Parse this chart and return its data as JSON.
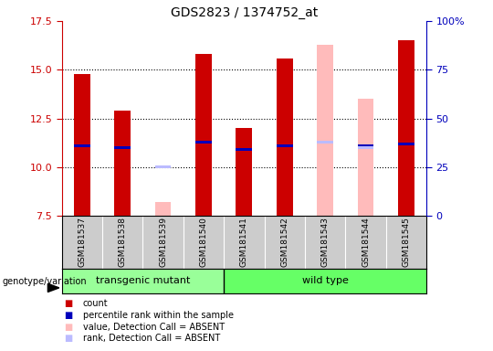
{
  "title": "GDS2823 / 1374752_at",
  "samples": [
    "GSM181537",
    "GSM181538",
    "GSM181539",
    "GSM181540",
    "GSM181541",
    "GSM181542",
    "GSM181543",
    "GSM181544",
    "GSM181545"
  ],
  "ylim": [
    7.5,
    17.5
  ],
  "yticks": [
    7.5,
    10.0,
    12.5,
    15.0,
    17.5
  ],
  "right_yticks": [
    0,
    25,
    50,
    75,
    100
  ],
  "right_ylabels": [
    "0",
    "25",
    "50",
    "75",
    "100%"
  ],
  "count_values": [
    14.8,
    12.9,
    null,
    15.8,
    12.0,
    15.6,
    null,
    null,
    16.5
  ],
  "rank_values": [
    11.1,
    11.0,
    null,
    11.3,
    10.9,
    11.1,
    null,
    11.1,
    11.2
  ],
  "absent_value_values": [
    null,
    null,
    8.2,
    null,
    null,
    null,
    16.3,
    13.5,
    null
  ],
  "absent_rank_values": [
    null,
    null,
    10.0,
    null,
    null,
    null,
    11.3,
    11.0,
    null
  ],
  "bar_width": 0.4,
  "colors": {
    "count": "#cc0000",
    "rank": "#0000bb",
    "absent_value": "#ffbbbb",
    "absent_rank": "#bbbbff",
    "transgenic": "#99ff99",
    "wild": "#66ff66",
    "tick_left": "#cc0000",
    "tick_right": "#0000bb",
    "bg_label": "#cccccc"
  },
  "legend_items": [
    {
      "color": "#cc0000",
      "label": "count"
    },
    {
      "color": "#0000bb",
      "label": "percentile rank within the sample"
    },
    {
      "color": "#ffbbbb",
      "label": "value, Detection Call = ABSENT"
    },
    {
      "color": "#bbbbff",
      "label": "rank, Detection Call = ABSENT"
    }
  ]
}
